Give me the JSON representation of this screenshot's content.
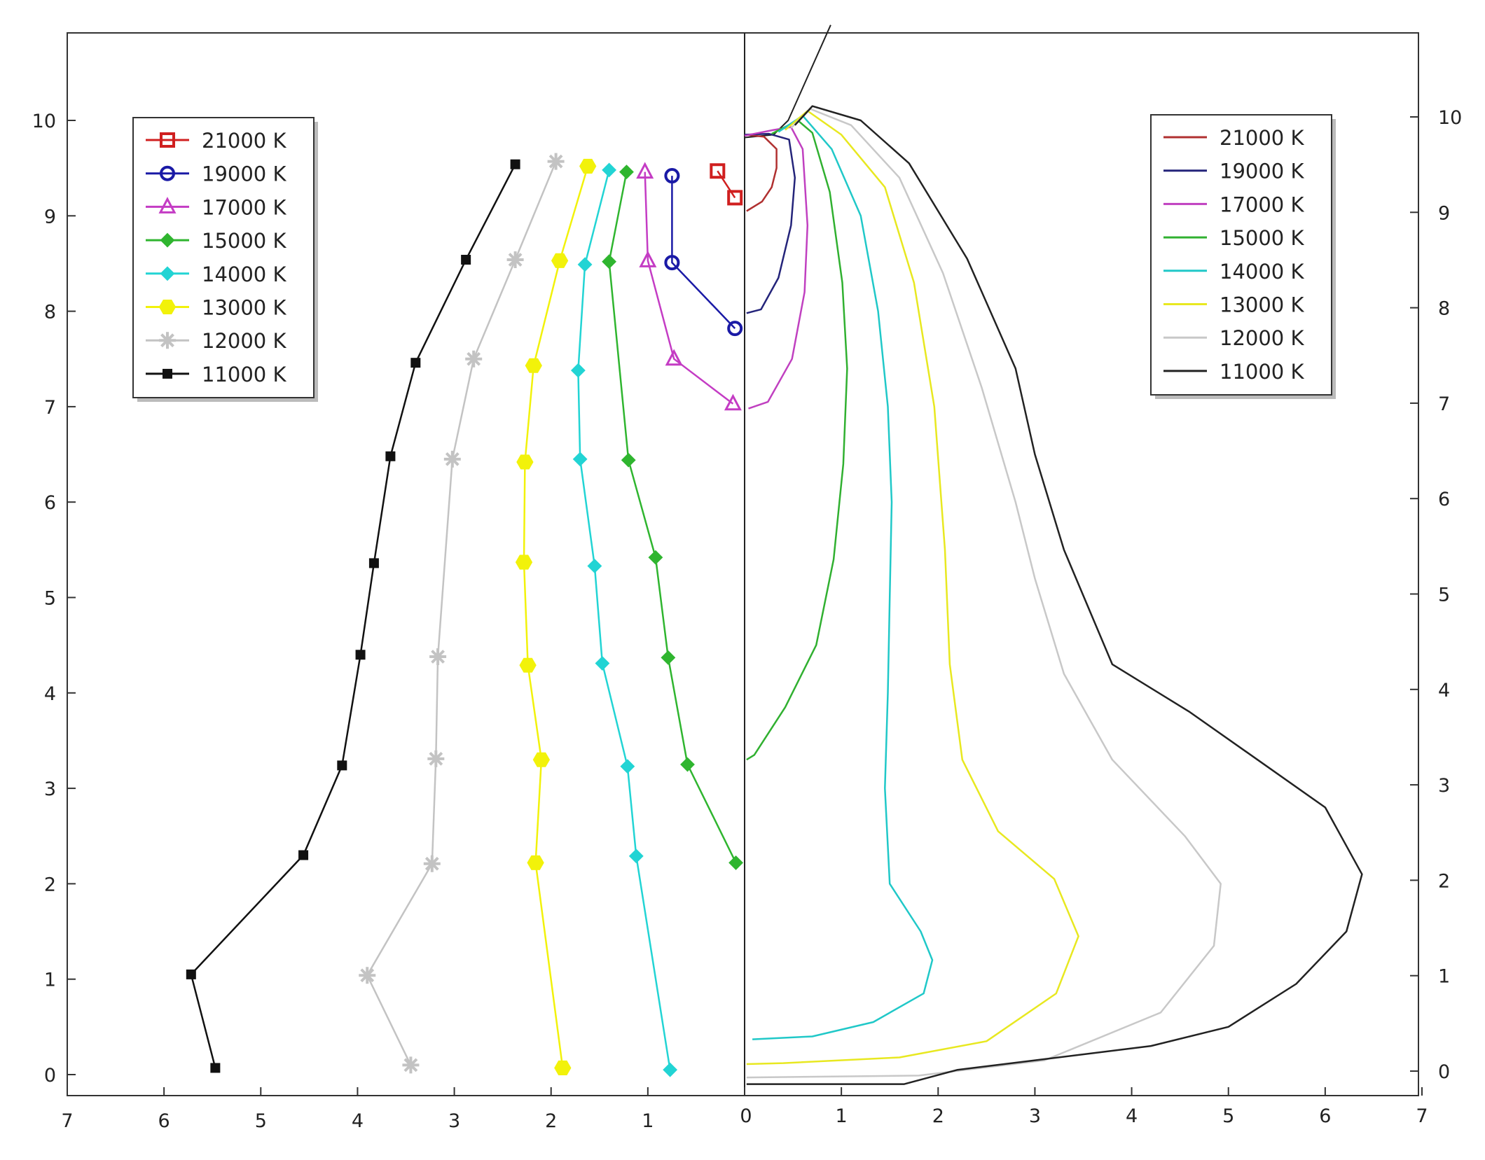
{
  "chart_data": [
    {
      "panel": "left",
      "type": "line",
      "title": "",
      "xlabel": "",
      "ylabel": "",
      "xlim": [
        7,
        0
      ],
      "ylim": [
        -0.2,
        10.9
      ],
      "x_ticks": [
        "7",
        "6",
        "5",
        "4",
        "3",
        "2",
        "1",
        "0"
      ],
      "y_ticks": [
        "0",
        "1",
        "2",
        "3",
        "4",
        "5",
        "6",
        "7",
        "8",
        "9",
        "10"
      ],
      "legend_position": "top-left",
      "grid": false,
      "series": [
        {
          "name": "21000 K",
          "color": "#d01f1f",
          "marker": "square-open",
          "points": [
            [
              0.28,
              9.47
            ],
            [
              0.1,
              9.19
            ]
          ]
        },
        {
          "name": "19000 K",
          "color": "#1a1aa6",
          "marker": "circle-open",
          "points": [
            [
              0.75,
              9.42
            ],
            [
              0.75,
              8.51
            ],
            [
              0.1,
              7.82
            ]
          ]
        },
        {
          "name": "17000 K",
          "color": "#c43cc4",
          "marker": "triangle-open",
          "points": [
            [
              1.03,
              9.46
            ],
            [
              1.0,
              8.53
            ],
            [
              0.73,
              7.5
            ],
            [
              0.12,
              7.03
            ]
          ]
        },
        {
          "name": "15000 K",
          "color": "#2fb52f",
          "marker": "diamond",
          "points": [
            [
              1.22,
              9.46
            ],
            [
              1.4,
              8.52
            ],
            [
              1.2,
              6.44
            ],
            [
              0.92,
              5.42
            ],
            [
              0.79,
              4.37
            ],
            [
              0.59,
              3.25
            ],
            [
              0.09,
              2.22
            ]
          ]
        },
        {
          "name": "14000 K",
          "color": "#22d4d4",
          "marker": "diamond",
          "points": [
            [
              1.4,
              9.48
            ],
            [
              1.65,
              8.49
            ],
            [
              1.72,
              7.38
            ],
            [
              1.7,
              6.45
            ],
            [
              1.55,
              5.33
            ],
            [
              1.47,
              4.31
            ],
            [
              1.21,
              3.23
            ],
            [
              1.12,
              2.29
            ],
            [
              0.77,
              0.05
            ]
          ]
        },
        {
          "name": "13000 K",
          "color": "#f2f20a",
          "marker": "hexagon",
          "points": [
            [
              1.62,
              9.52
            ],
            [
              1.91,
              8.53
            ],
            [
              2.18,
              7.43
            ],
            [
              2.27,
              6.42
            ],
            [
              2.28,
              5.37
            ],
            [
              2.24,
              4.29
            ],
            [
              2.1,
              3.3
            ],
            [
              2.16,
              2.22
            ],
            [
              1.88,
              0.07
            ]
          ]
        },
        {
          "name": "12000 K",
          "color": "#c3c3c3",
          "marker": "star",
          "points": [
            [
              1.95,
              9.57
            ],
            [
              2.37,
              8.54
            ],
            [
              2.8,
              7.5
            ],
            [
              3.02,
              6.45
            ],
            [
              3.17,
              4.38
            ],
            [
              3.19,
              3.31
            ],
            [
              3.23,
              2.21
            ],
            [
              3.9,
              1.04
            ],
            [
              3.45,
              0.1
            ]
          ]
        },
        {
          "name": "11000 K",
          "color": "#111111",
          "marker": "square",
          "points": [
            [
              2.37,
              9.54
            ],
            [
              2.88,
              8.54
            ],
            [
              3.4,
              7.46
            ],
            [
              3.66,
              6.48
            ],
            [
              3.83,
              5.36
            ],
            [
              3.97,
              4.4
            ],
            [
              4.16,
              3.24
            ],
            [
              4.56,
              2.3
            ],
            [
              5.72,
              1.05
            ],
            [
              5.47,
              0.07
            ]
          ]
        }
      ]
    },
    {
      "panel": "right",
      "type": "line",
      "title": "",
      "xlabel": "",
      "ylabel": "",
      "xlim": [
        0,
        7
      ],
      "ylim": [
        -0.2,
        10.9
      ],
      "x_ticks": [
        "0",
        "1",
        "2",
        "3",
        "4",
        "5",
        "6",
        "7"
      ],
      "y_ticks": [
        "0",
        "1",
        "2",
        "3",
        "4",
        "5",
        "6",
        "7",
        "8",
        "9",
        "10"
      ],
      "legend_position": "top-right",
      "grid": false,
      "reference_line": [
        [
          0.0,
          9.82
        ],
        [
          0.3,
          9.85
        ],
        [
          0.45,
          10.0
        ],
        [
          0.89,
          11.0
        ]
      ],
      "series": [
        {
          "name": "21000 K",
          "color": "#b03030",
          "points": [
            [
              0.0,
              9.85
            ],
            [
              0.2,
              9.83
            ],
            [
              0.33,
              9.7
            ],
            [
              0.33,
              9.5
            ],
            [
              0.28,
              9.3
            ],
            [
              0.18,
              9.15
            ],
            [
              0.02,
              9.05
            ]
          ]
        },
        {
          "name": "19000 K",
          "color": "#24247a",
          "points": [
            [
              0.0,
              9.85
            ],
            [
              0.25,
              9.86
            ],
            [
              0.46,
              9.8
            ],
            [
              0.52,
              9.4
            ],
            [
              0.48,
              8.9
            ],
            [
              0.35,
              8.35
            ],
            [
              0.17,
              8.02
            ],
            [
              0.02,
              7.98
            ]
          ]
        },
        {
          "name": "17000 K",
          "color": "#c040c0",
          "points": [
            [
              0.0,
              9.84
            ],
            [
              0.3,
              9.9
            ],
            [
              0.48,
              9.93
            ],
            [
              0.6,
              9.7
            ],
            [
              0.65,
              8.9
            ],
            [
              0.62,
              8.2
            ],
            [
              0.49,
              7.5
            ],
            [
              0.24,
              7.05
            ],
            [
              0.04,
              6.98
            ]
          ]
        },
        {
          "name": "15000 K",
          "color": "#30b030",
          "points": [
            [
              0.28,
              9.86
            ],
            [
              0.55,
              10.0
            ],
            [
              0.7,
              9.87
            ],
            [
              0.88,
              9.25
            ],
            [
              1.01,
              8.3
            ],
            [
              1.06,
              7.4
            ],
            [
              1.02,
              6.4
            ],
            [
              0.92,
              5.4
            ],
            [
              0.74,
              4.5
            ],
            [
              0.42,
              3.85
            ],
            [
              0.1,
              3.35
            ],
            [
              0.02,
              3.3
            ]
          ]
        },
        {
          "name": "14000 K",
          "color": "#20c8c8",
          "points": [
            [
              0.35,
              9.88
            ],
            [
              0.6,
              10.05
            ],
            [
              0.9,
              9.7
            ],
            [
              1.2,
              9.0
            ],
            [
              1.38,
              8.0
            ],
            [
              1.48,
              7.0
            ],
            [
              1.52,
              6.0
            ],
            [
              1.5,
              5.0
            ],
            [
              1.48,
              4.0
            ],
            [
              1.45,
              3.0
            ],
            [
              1.5,
              2.0
            ],
            [
              1.82,
              1.5
            ],
            [
              1.94,
              1.2
            ],
            [
              1.85,
              0.85
            ],
            [
              1.33,
              0.55
            ],
            [
              0.7,
              0.4
            ],
            [
              0.08,
              0.37
            ]
          ]
        },
        {
          "name": "13000 K",
          "color": "#e8e820",
          "points": [
            [
              0.42,
              9.9
            ],
            [
              0.65,
              10.1
            ],
            [
              1.0,
              9.85
            ],
            [
              1.45,
              9.3
            ],
            [
              1.75,
              8.3
            ],
            [
              1.96,
              7.0
            ],
            [
              2.07,
              5.5
            ],
            [
              2.12,
              4.3
            ],
            [
              2.25,
              3.3
            ],
            [
              2.62,
              2.55
            ],
            [
              3.2,
              2.05
            ],
            [
              3.45,
              1.45
            ],
            [
              3.22,
              0.85
            ],
            [
              2.5,
              0.35
            ],
            [
              1.6,
              0.18
            ],
            [
              0.4,
              0.12
            ],
            [
              0.02,
              0.11
            ]
          ]
        },
        {
          "name": "12000 K",
          "color": "#c8c8c8",
          "points": [
            [
              0.48,
              9.92
            ],
            [
              0.68,
              10.12
            ],
            [
              1.1,
              9.95
            ],
            [
              1.6,
              9.4
            ],
            [
              2.05,
              8.4
            ],
            [
              2.45,
              7.2
            ],
            [
              2.8,
              6.0
            ],
            [
              3.0,
              5.2
            ],
            [
              3.3,
              4.2
            ],
            [
              3.8,
              3.3
            ],
            [
              4.55,
              2.5
            ],
            [
              4.92,
              2.0
            ],
            [
              4.85,
              1.35
            ],
            [
              4.3,
              0.65
            ],
            [
              3.1,
              0.15
            ],
            [
              1.8,
              -0.01
            ],
            [
              0.02,
              -0.03
            ]
          ]
        },
        {
          "name": "11000 K",
          "color": "#222222",
          "points": [
            [
              0.52,
              9.95
            ],
            [
              0.7,
              10.15
            ],
            [
              1.2,
              10.0
            ],
            [
              1.7,
              9.55
            ],
            [
              2.3,
              8.55
            ],
            [
              2.8,
              7.4
            ],
            [
              3.0,
              6.5
            ],
            [
              3.3,
              5.5
            ],
            [
              3.8,
              4.3
            ],
            [
              4.6,
              3.8
            ],
            [
              5.3,
              3.3
            ],
            [
              6.0,
              2.8
            ],
            [
              6.38,
              2.1
            ],
            [
              6.22,
              1.5
            ],
            [
              5.7,
              0.95
            ],
            [
              5.0,
              0.5
            ],
            [
              4.2,
              0.3
            ],
            [
              3.0,
              0.15
            ],
            [
              2.2,
              0.05
            ],
            [
              1.65,
              -0.1
            ],
            [
              0.02,
              -0.1
            ]
          ]
        }
      ]
    }
  ]
}
